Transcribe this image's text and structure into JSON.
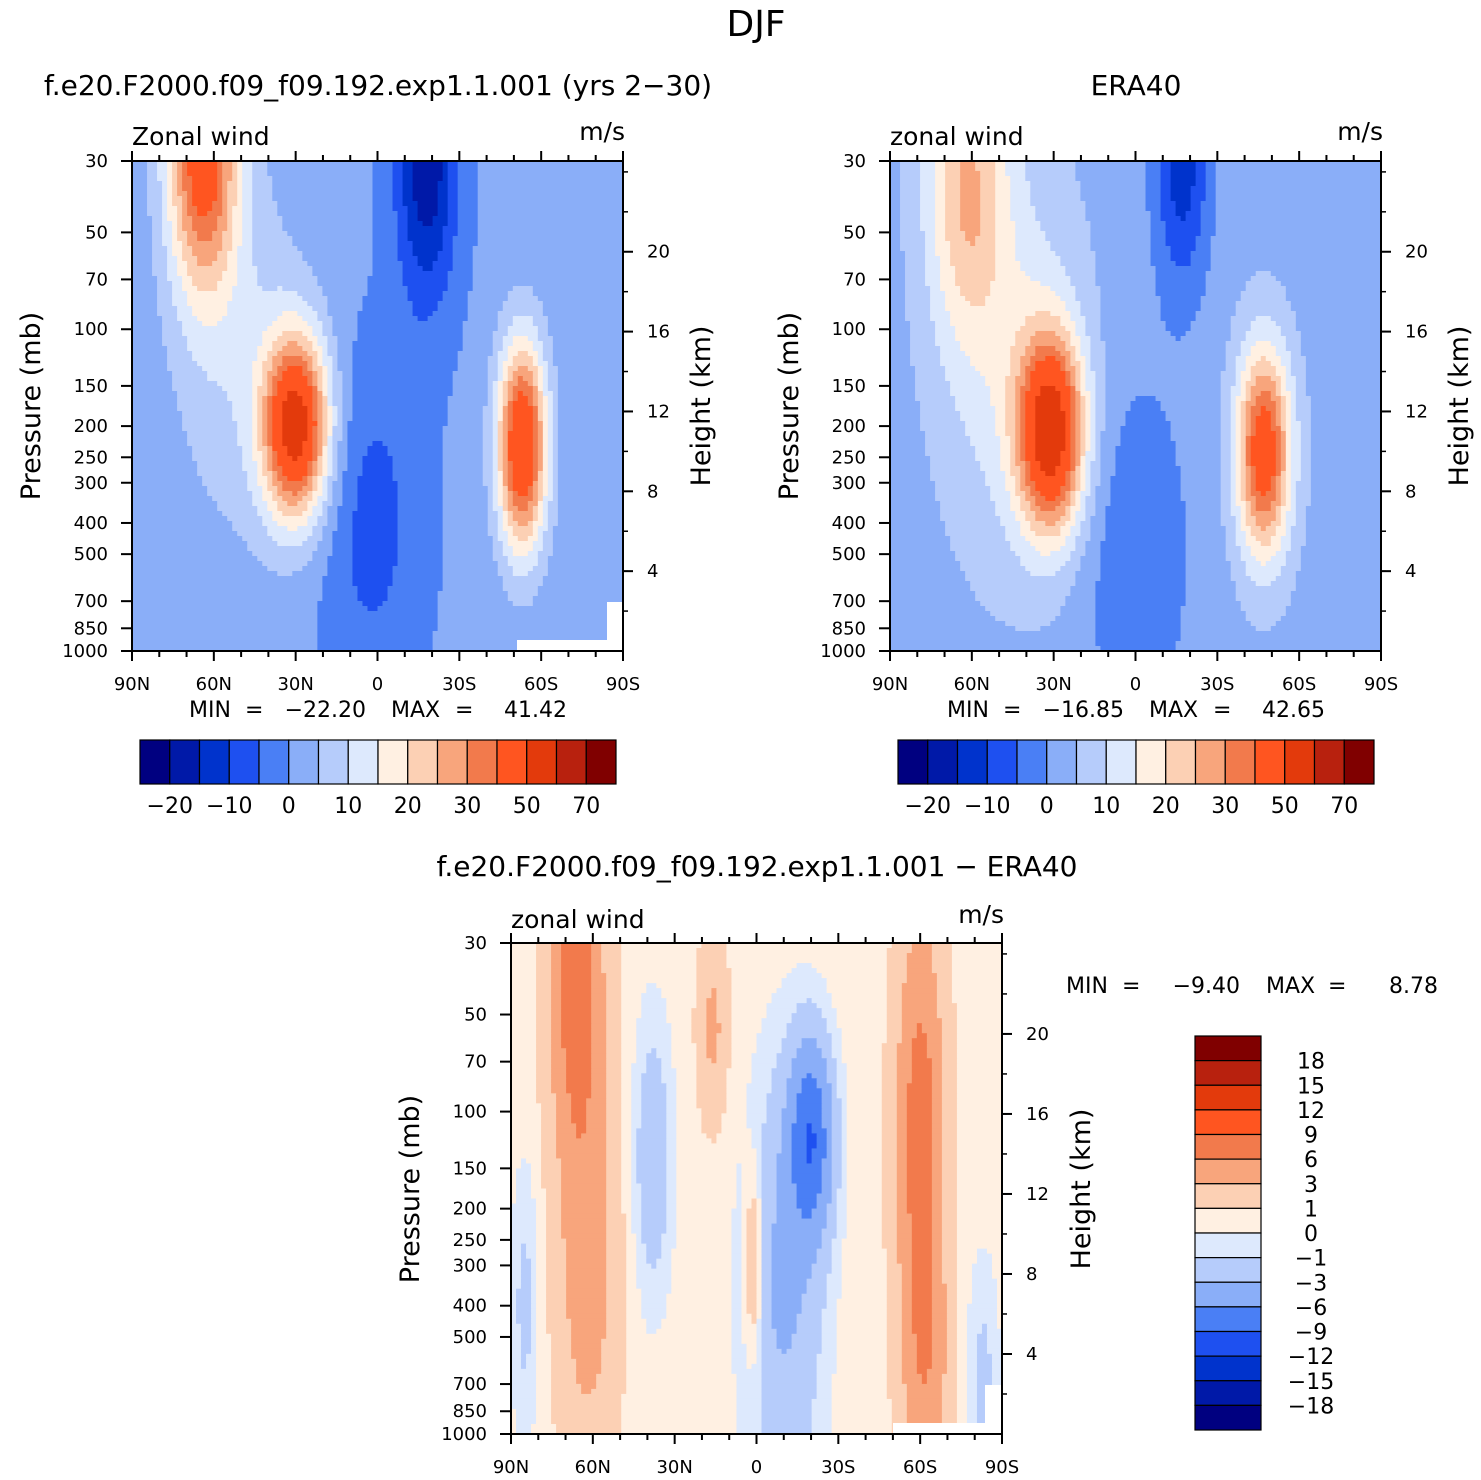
{
  "figure": {
    "title": "DJF"
  },
  "colors": {
    "abs_levels": [
      "#000080",
      "#0019a8",
      "#0033cc",
      "#1e50f0",
      "#4a7ff5",
      "#8aaef8",
      "#b6ccfb",
      "#dde9fd",
      "#fff0e2",
      "#fcd0b4",
      "#f8a57c",
      "#f27a4c",
      "#ff5520",
      "#e33a0c",
      "#b8210e",
      "#800000"
    ],
    "diff_levels": [
      "#000080",
      "#0019a8",
      "#0033cc",
      "#1e50f0",
      "#4a7ff5",
      "#8aaef8",
      "#b6ccfb",
      "#dde9fd",
      "#fff0e2",
      "#fcd0b4",
      "#f8a57c",
      "#f27a4c",
      "#ff5520",
      "#e33a0c",
      "#b8210e",
      "#800000"
    ]
  },
  "chart_data": [
    {
      "type": "heatmap",
      "title": "f.e20.F2000.f09_f09.192.exp1.1.001 (yrs 2−30)",
      "left_label": "Zonal wind",
      "units": "m/s",
      "ylabel": "Pressure (mb)",
      "y2label": "Height (km)",
      "x_ticks": [
        "90N",
        "60N",
        "30N",
        "0",
        "30S",
        "60S",
        "90S"
      ],
      "y_ticks": [
        "30",
        "50",
        "70",
        "100",
        "150",
        "200",
        "250",
        "300",
        "400",
        "500",
        "700",
        "850",
        "1000"
      ],
      "y2_ticks": [
        "20",
        "16",
        "12",
        "8",
        "4"
      ],
      "min_label": "MIN",
      "min_value": "−22.20",
      "max_label": "MAX",
      "max_value": "41.42",
      "colorbar_labels": [
        "−20",
        "−10",
        "0",
        "10",
        "20",
        "30",
        "50",
        "70"
      ],
      "jets": [
        {
          "lat": 30,
          "p": 200,
          "max": 41.42
        },
        {
          "lat": -53,
          "p": 250,
          "max": 38
        },
        {
          "lat": 62,
          "p": 30,
          "max": 32
        },
        {
          "lat": -18,
          "p": 30,
          "min": -22.2
        }
      ]
    },
    {
      "type": "heatmap",
      "title": "ERA40",
      "left_label": "zonal wind",
      "units": "m/s",
      "ylabel": "Pressure (mb)",
      "y2label": "Height (km)",
      "x_ticks": [
        "90N",
        "60N",
        "30N",
        "0",
        "30S",
        "60S",
        "90S"
      ],
      "y_ticks": [
        "30",
        "50",
        "70",
        "100",
        "150",
        "200",
        "250",
        "300",
        "400",
        "500",
        "700",
        "850",
        "1000"
      ],
      "y2_ticks": [
        "20",
        "16",
        "12",
        "8",
        "4"
      ],
      "min_label": "MIN",
      "min_value": "−16.85",
      "max_label": "MAX",
      "max_value": "42.65",
      "colorbar_labels": [
        "−20",
        "−10",
        "0",
        "10",
        "20",
        "30",
        "50",
        "70"
      ],
      "jets": [
        {
          "lat": 31,
          "p": 200,
          "max": 42.65
        },
        {
          "lat": -47,
          "p": 250,
          "max": 35
        },
        {
          "lat": 62,
          "p": 30,
          "max": 20
        },
        {
          "lat": -17,
          "p": 30,
          "min": -16.85
        }
      ]
    },
    {
      "type": "heatmap",
      "title": "f.e20.F2000.f09_f09.192.exp1.1.001 − ERA40",
      "left_label": "zonal wind",
      "units": "m/s",
      "ylabel": "Pressure (mb)",
      "y2label": "Height (km)",
      "x_ticks": [
        "90N",
        "60N",
        "30N",
        "0",
        "30S",
        "60S",
        "90S"
      ],
      "y_ticks": [
        "30",
        "50",
        "70",
        "100",
        "150",
        "200",
        "250",
        "300",
        "400",
        "500",
        "700",
        "850",
        "1000"
      ],
      "y2_ticks": [
        "20",
        "16",
        "12",
        "8",
        "4"
      ],
      "min_label": "MIN",
      "min_value": "−9.40",
      "max_label": "MAX",
      "max_value": "8.78",
      "colorbar_labels": [
        "18",
        "15",
        "12",
        "9",
        "6",
        "3",
        "1",
        "0",
        "−1",
        "−3",
        "−6",
        "−9",
        "−12",
        "−15",
        "−18"
      ]
    }
  ]
}
